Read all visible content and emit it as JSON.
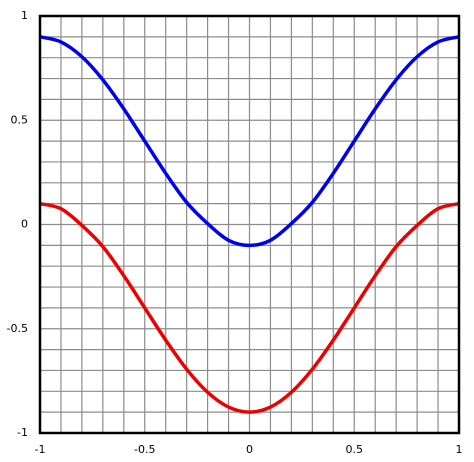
{
  "chart_data": {
    "type": "line",
    "x": [
      -1,
      -0.9,
      -0.8,
      -0.7,
      -0.6,
      -0.5,
      -0.4,
      -0.3,
      -0.2,
      -0.1,
      0,
      0.1,
      0.2,
      0.3,
      0.4,
      0.5,
      0.6,
      0.7,
      0.8,
      0.9,
      1
    ],
    "series": [
      {
        "color": "#0000ee",
        "values": [
          0.9,
          0.8756,
          0.8045,
          0.6939,
          0.5545,
          0.4,
          0.2455,
          0.1061,
          0.0045,
          -0.0756,
          -0.1,
          -0.0756,
          0.0045,
          0.1061,
          0.2455,
          0.4,
          0.5545,
          0.6939,
          0.8045,
          0.8756,
          0.9
        ]
      },
      {
        "color": "#ee0000",
        "values": [
          0.1,
          0.0756,
          -0.0045,
          -0.1061,
          -0.2455,
          -0.4,
          -0.5545,
          -0.6939,
          -0.8045,
          -0.8756,
          -0.9,
          -0.8756,
          -0.8045,
          -0.6939,
          -0.5545,
          -0.4,
          -0.2455,
          -0.1061,
          -0.0045,
          0.0756,
          0.1
        ]
      }
    ],
    "xlim": [
      -1,
      1
    ],
    "ylim": [
      -1,
      1
    ],
    "xticks": [
      -1,
      -0.5,
      0,
      0.5,
      1
    ],
    "yticks": [
      -1,
      -0.5,
      0,
      0.5,
      1
    ],
    "xminorticks": [
      -0.9,
      -0.8,
      -0.7,
      -0.6,
      -0.4,
      -0.3,
      -0.2,
      -0.1,
      0.1,
      0.2,
      0.3,
      0.4,
      0.6,
      0.7,
      0.8,
      0.9
    ],
    "yminorticks": [
      -0.9,
      -0.8,
      -0.7,
      -0.6,
      -0.4,
      -0.3,
      -0.2,
      -0.1,
      0.1,
      0.2,
      0.3,
      0.4,
      0.6,
      0.7,
      0.8,
      0.9
    ],
    "grid": true
  }
}
